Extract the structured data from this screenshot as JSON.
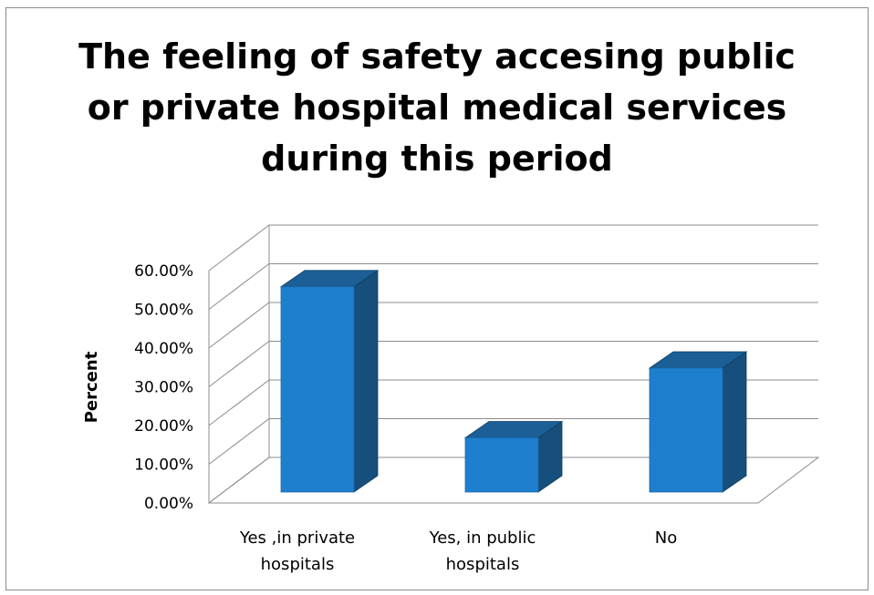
{
  "chart_data": {
    "type": "bar",
    "title": "The feeling of safety accesing public\nor private hospital medical services\nduring this period",
    "xlabel": "",
    "ylabel": "Percent",
    "categories": [
      "Yes ,in private hospitals",
      "Yes, in public hospitals",
      "No"
    ],
    "category_lines": [
      [
        "Yes ,in private",
        "hospitals"
      ],
      [
        "Yes, in public",
        "hospitals"
      ],
      [
        "No"
      ]
    ],
    "values": [
      0.53,
      0.14,
      0.32
    ],
    "ylim": [
      0,
      0.6
    ],
    "yticks": [
      "0.00%",
      "10.00%",
      "20.00%",
      "30.00%",
      "40.00%",
      "50.00%",
      "60.00%"
    ],
    "grid": true,
    "legend": "none",
    "bar_front_color": "#1f7fcf",
    "bar_top_color": "#1b5f96",
    "bar_side_color": "#174f7c"
  }
}
